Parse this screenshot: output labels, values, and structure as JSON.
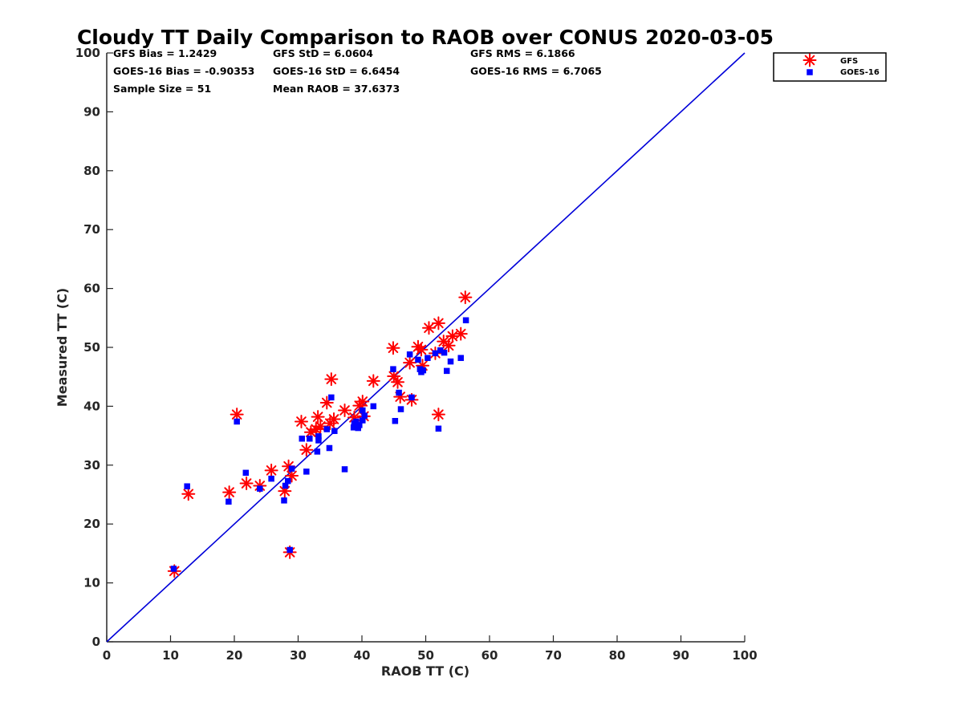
{
  "chart_data": {
    "type": "scatter",
    "title": "Cloudy TT Daily Comparison to RAOB over CONUS 2020-03-05",
    "xlabel": "RAOB TT (C)",
    "ylabel": "Measured TT (C)",
    "xlim": [
      0,
      100
    ],
    "ylim": [
      0,
      100
    ],
    "xticks": [
      "0",
      "10",
      "20",
      "30",
      "40",
      "50",
      "60",
      "70",
      "80",
      "90",
      "100"
    ],
    "yticks": [
      "0",
      "10",
      "20",
      "30",
      "40",
      "50",
      "60",
      "70",
      "80",
      "90",
      "100"
    ],
    "grid": false,
    "legend_position": "outside top-right",
    "reference_line": {
      "x": [
        0,
        100
      ],
      "y": [
        0,
        100
      ],
      "color": "#0000d9"
    },
    "stats": [
      {
        "text": "GFS Bias = 1.2429"
      },
      {
        "text": "GFS StD = 6.0604"
      },
      {
        "text": "GFS RMS = 6.1866"
      },
      {
        "text": "GOES-16 Bias = -0.90353"
      },
      {
        "text": "GOES-16 StD = 6.6454"
      },
      {
        "text": "GOES-16 RMS = 6.7065"
      },
      {
        "text": "Sample Size = 51"
      },
      {
        "text": "Mean RAOB = 37.6373"
      }
    ],
    "series": [
      {
        "name": "GFS",
        "marker": "asterisk",
        "color": "#ff0000",
        "points": [
          [
            10.6,
            12.0
          ],
          [
            12.8,
            25.1
          ],
          [
            19.2,
            25.4
          ],
          [
            20.4,
            38.6
          ],
          [
            21.9,
            26.9
          ],
          [
            24.0,
            26.5
          ],
          [
            25.8,
            29.1
          ],
          [
            27.9,
            25.6
          ],
          [
            28.5,
            29.8
          ],
          [
            28.7,
            15.2
          ],
          [
            29.0,
            28.2
          ],
          [
            30.5,
            37.4
          ],
          [
            31.3,
            32.6
          ],
          [
            32.0,
            35.6
          ],
          [
            32.8,
            36.1
          ],
          [
            33.1,
            38.2
          ],
          [
            33.5,
            36.6
          ],
          [
            34.5,
            40.6
          ],
          [
            35.0,
            37.1
          ],
          [
            35.2,
            44.6
          ],
          [
            35.6,
            37.8
          ],
          [
            37.3,
            39.3
          ],
          [
            38.8,
            38.1
          ],
          [
            39.6,
            40.1
          ],
          [
            40.3,
            38.3
          ],
          [
            40.1,
            40.8
          ],
          [
            41.8,
            44.3
          ],
          [
            44.9,
            49.9
          ],
          [
            45.0,
            45.1
          ],
          [
            45.6,
            44.1
          ],
          [
            46.0,
            41.6
          ],
          [
            47.5,
            47.4
          ],
          [
            47.8,
            41.1
          ],
          [
            48.8,
            50.1
          ],
          [
            49.3,
            49.6
          ],
          [
            49.5,
            46.9
          ],
          [
            50.5,
            53.3
          ],
          [
            51.5,
            49.0
          ],
          [
            52.0,
            54.1
          ],
          [
            52.0,
            38.6
          ],
          [
            52.8,
            51.0
          ],
          [
            53.6,
            50.3
          ],
          [
            54.2,
            51.9
          ],
          [
            55.5,
            52.3
          ],
          [
            56.2,
            58.5
          ]
        ]
      },
      {
        "name": "GOES-16",
        "marker": "square",
        "color": "#0000ff",
        "points": [
          [
            10.5,
            12.4
          ],
          [
            12.6,
            26.4
          ],
          [
            19.1,
            23.8
          ],
          [
            20.4,
            37.4
          ],
          [
            21.8,
            28.7
          ],
          [
            24.0,
            26.0
          ],
          [
            25.8,
            27.7
          ],
          [
            27.8,
            24.0
          ],
          [
            28.0,
            26.5
          ],
          [
            28.4,
            27.3
          ],
          [
            28.7,
            15.6
          ],
          [
            29.0,
            29.4
          ],
          [
            30.6,
            34.5
          ],
          [
            31.3,
            28.9
          ],
          [
            31.8,
            34.5
          ],
          [
            33.0,
            32.3
          ],
          [
            33.2,
            34.2
          ],
          [
            33.2,
            34.9
          ],
          [
            34.5,
            36.1
          ],
          [
            34.9,
            32.9
          ],
          [
            35.2,
            41.5
          ],
          [
            35.7,
            35.8
          ],
          [
            37.3,
            29.3
          ],
          [
            38.7,
            36.4
          ],
          [
            38.8,
            37.1
          ],
          [
            39.1,
            37.4
          ],
          [
            39.4,
            36.3
          ],
          [
            39.6,
            36.8
          ],
          [
            40.1,
            37.6
          ],
          [
            40.1,
            39.3
          ],
          [
            40.4,
            38.4
          ],
          [
            41.8,
            40.0
          ],
          [
            44.9,
            46.3
          ],
          [
            45.2,
            37.5
          ],
          [
            45.8,
            42.3
          ],
          [
            46.1,
            39.5
          ],
          [
            47.5,
            48.8
          ],
          [
            47.8,
            41.5
          ],
          [
            48.8,
            47.9
          ],
          [
            49.1,
            46.3
          ],
          [
            49.3,
            45.8
          ],
          [
            49.6,
            46.1
          ],
          [
            50.3,
            48.2
          ],
          [
            51.5,
            49.0
          ],
          [
            52.0,
            36.2
          ],
          [
            52.3,
            49.5
          ],
          [
            52.9,
            49.1
          ],
          [
            53.3,
            46.0
          ],
          [
            53.9,
            47.6
          ],
          [
            55.5,
            48.2
          ],
          [
            56.3,
            54.6
          ]
        ]
      }
    ]
  }
}
